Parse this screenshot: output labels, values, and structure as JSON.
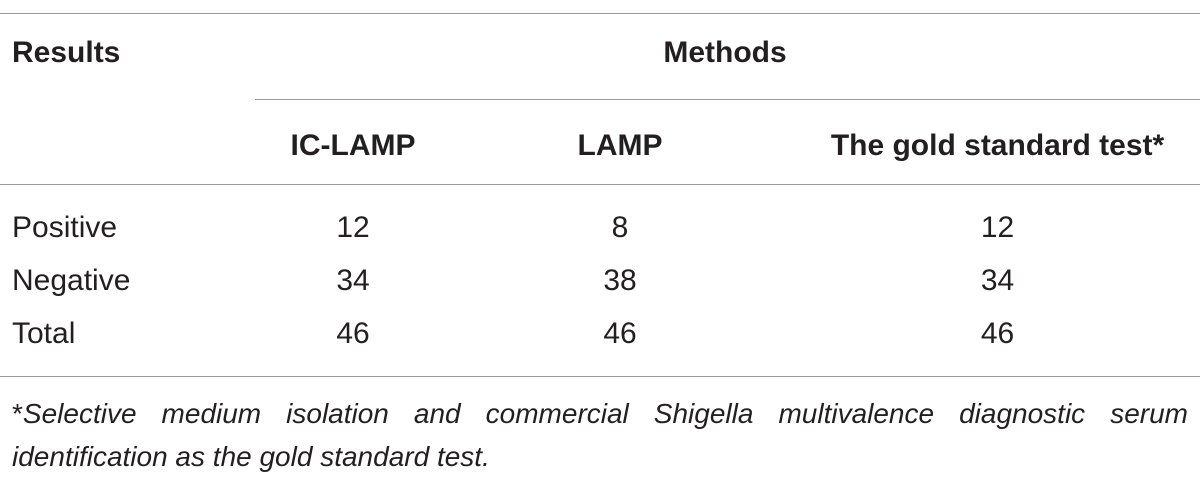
{
  "table": {
    "header": {
      "results_label": "Results",
      "methods_label": "Methods",
      "columns": [
        "IC-LAMP",
        "LAMP",
        "The gold standard test*"
      ]
    },
    "rows": [
      {
        "label": "Positive",
        "values": [
          "12",
          "8",
          "12"
        ]
      },
      {
        "label": "Negative",
        "values": [
          "34",
          "38",
          "34"
        ]
      },
      {
        "label": "Total",
        "values": [
          "46",
          "46",
          "46"
        ]
      }
    ],
    "footnote": {
      "mark": "*",
      "text": "Selective medium isolation and commercial Shigella multivalence diagnostic serum identification as the gold standard test."
    }
  }
}
